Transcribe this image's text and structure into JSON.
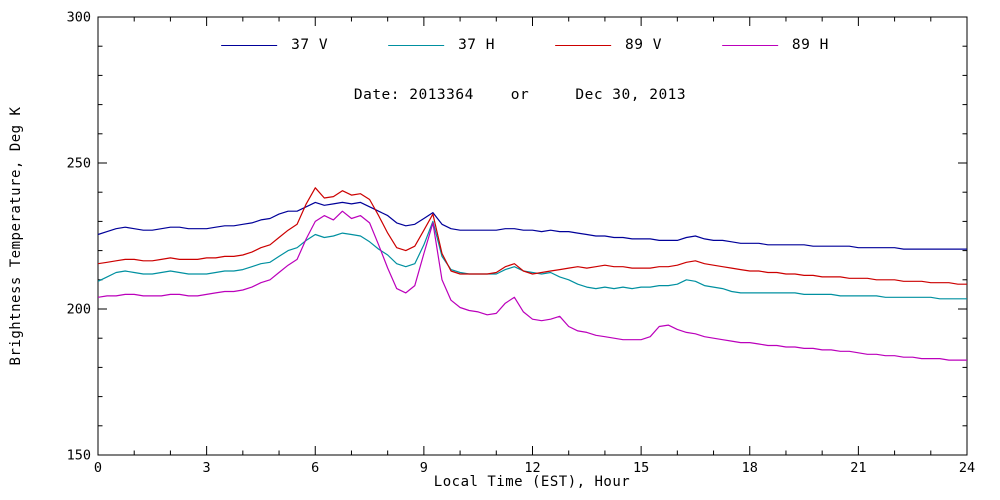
{
  "figure": {
    "background": "#ffffff",
    "axis_color": "#000000"
  },
  "chart_data": {
    "type": "line",
    "title": "Date: 2013364    or     Dec 30, 2013",
    "xlabel": "Local Time (EST), Hour",
    "ylabel": "Brightness Temperature, Deg K",
    "xlim": [
      0,
      24
    ],
    "ylim": [
      150,
      300
    ],
    "xticks": [
      0,
      3,
      6,
      9,
      12,
      15,
      18,
      21,
      24
    ],
    "yticks": [
      150,
      200,
      250,
      300
    ],
    "x_minor_step": 1,
    "y_minor_step": 10,
    "grid": false,
    "legend_position": "top-center",
    "axis_color": "#000000",
    "x": [
      0,
      0.25,
      0.5,
      0.75,
      1,
      1.25,
      1.5,
      1.75,
      2,
      2.25,
      2.5,
      2.75,
      3,
      3.25,
      3.5,
      3.75,
      4,
      4.25,
      4.5,
      4.75,
      5,
      5.25,
      5.5,
      5.75,
      6,
      6.25,
      6.5,
      6.75,
      7,
      7.25,
      7.5,
      7.75,
      8,
      8.25,
      8.5,
      8.75,
      9,
      9.25,
      9.5,
      9.75,
      10,
      10.25,
      10.5,
      10.75,
      11,
      11.25,
      11.5,
      11.75,
      12,
      12.25,
      12.5,
      12.75,
      13,
      13.25,
      13.5,
      13.75,
      14,
      14.25,
      14.5,
      14.75,
      15,
      15.25,
      15.5,
      15.75,
      16,
      16.25,
      16.5,
      16.75,
      17,
      17.25,
      17.5,
      17.75,
      18,
      18.25,
      18.5,
      18.75,
      19,
      19.25,
      19.5,
      19.75,
      20,
      20.25,
      20.5,
      20.75,
      21,
      21.25,
      21.5,
      21.75,
      22,
      22.25,
      22.5,
      22.75,
      23,
      23.25,
      23.5,
      23.75,
      24
    ],
    "series": [
      {
        "name": "37 V",
        "color": "#000099",
        "values": [
          225.5,
          226.5,
          227.5,
          228,
          227.5,
          227,
          227,
          227.5,
          228,
          228,
          227.5,
          227.5,
          227.5,
          228,
          228.5,
          228.5,
          229,
          229.5,
          230.5,
          231,
          232.5,
          233.5,
          233.5,
          235,
          236.5,
          235.5,
          236,
          236.5,
          236,
          236.5,
          235,
          233.5,
          232,
          229.5,
          228.5,
          229,
          231,
          233,
          229,
          227.5,
          227,
          227,
          227,
          227,
          227,
          227.5,
          227.5,
          227,
          227,
          226.5,
          227,
          226.5,
          226.5,
          226,
          225.5,
          225,
          225,
          224.5,
          224.5,
          224,
          224,
          224,
          223.5,
          223.5,
          223.5,
          224.5,
          225,
          224,
          223.5,
          223.5,
          223,
          222.5,
          222.5,
          222.5,
          222,
          222,
          222,
          222,
          222,
          221.5,
          221.5,
          221.5,
          221.5,
          221.5,
          221,
          221,
          221,
          221,
          221,
          220.5,
          220.5,
          220.5,
          220.5,
          220.5,
          220.5,
          220.5,
          220.5
        ]
      },
      {
        "name": "37 H",
        "color": "#0090a0",
        "values": [
          209.5,
          211,
          212.5,
          213,
          212.5,
          212,
          212,
          212.5,
          213,
          212.5,
          212,
          212,
          212,
          212.5,
          213,
          213,
          213.5,
          214.5,
          215.5,
          216,
          218,
          220,
          221,
          223.5,
          225.5,
          224.5,
          225,
          226,
          225.5,
          225,
          223,
          220.5,
          218.5,
          215.5,
          214.5,
          215.5,
          222,
          230,
          218,
          213.5,
          212.5,
          212,
          212,
          212,
          212,
          213.5,
          214.5,
          213,
          212.5,
          212,
          212.5,
          211,
          210,
          208.5,
          207.5,
          207,
          207.5,
          207,
          207.5,
          207,
          207.5,
          207.5,
          208,
          208,
          208.5,
          210,
          209.5,
          208,
          207.5,
          207,
          206,
          205.5,
          205.5,
          205.5,
          205.5,
          205.5,
          205.5,
          205.5,
          205,
          205,
          205,
          205,
          204.5,
          204.5,
          204.5,
          204.5,
          204.5,
          204,
          204,
          204,
          204,
          204,
          204,
          203.5,
          203.5,
          203.5,
          203.5
        ]
      },
      {
        "name": "89 V",
        "color": "#cc0000",
        "values": [
          215.5,
          216,
          216.5,
          217,
          217,
          216.5,
          216.5,
          217,
          217.5,
          217,
          217,
          217,
          217.5,
          217.5,
          218,
          218,
          218.5,
          219.5,
          221,
          222,
          224.5,
          227,
          229,
          236,
          241.5,
          238,
          238.5,
          240.5,
          239,
          239.5,
          237.5,
          232,
          226,
          221,
          220,
          221.5,
          227,
          232.5,
          219,
          213,
          212,
          212,
          212,
          212,
          212.5,
          214.5,
          215.5,
          213,
          212,
          212.5,
          213,
          213.5,
          214,
          214.5,
          214,
          214.5,
          215,
          214.5,
          214.5,
          214,
          214,
          214,
          214.5,
          214.5,
          215,
          216,
          216.5,
          215.5,
          215,
          214.5,
          214,
          213.5,
          213,
          213,
          212.5,
          212.5,
          212,
          212,
          211.5,
          211.5,
          211,
          211,
          211,
          210.5,
          210.5,
          210.5,
          210,
          210,
          210,
          209.5,
          209.5,
          209.5,
          209,
          209,
          209,
          208.5,
          208.5
        ]
      },
      {
        "name": "89 H",
        "color": "#bb00bb",
        "values": [
          204,
          204.5,
          204.5,
          205,
          205,
          204.5,
          204.5,
          204.5,
          205,
          205,
          204.5,
          204.5,
          205,
          205.5,
          206,
          206,
          206.5,
          207.5,
          209,
          210,
          212.5,
          215,
          217,
          224,
          230,
          232,
          230.5,
          233.5,
          231,
          232,
          229.5,
          222,
          214,
          207,
          205.5,
          208,
          219,
          229.5,
          210,
          203,
          200.5,
          199.5,
          199,
          198,
          198.5,
          202,
          204,
          199,
          196.5,
          196,
          196.5,
          197.5,
          194,
          192.5,
          192,
          191,
          190.5,
          190,
          189.5,
          189.5,
          189.5,
          190.5,
          194,
          194.5,
          193,
          192,
          191.5,
          190.5,
          190,
          189.5,
          189,
          188.5,
          188.5,
          188,
          187.5,
          187.5,
          187,
          187,
          186.5,
          186.5,
          186,
          186,
          185.5,
          185.5,
          185,
          184.5,
          184.5,
          184,
          184,
          183.5,
          183.5,
          183,
          183,
          183,
          182.5,
          182.5,
          182.5
        ]
      }
    ]
  }
}
